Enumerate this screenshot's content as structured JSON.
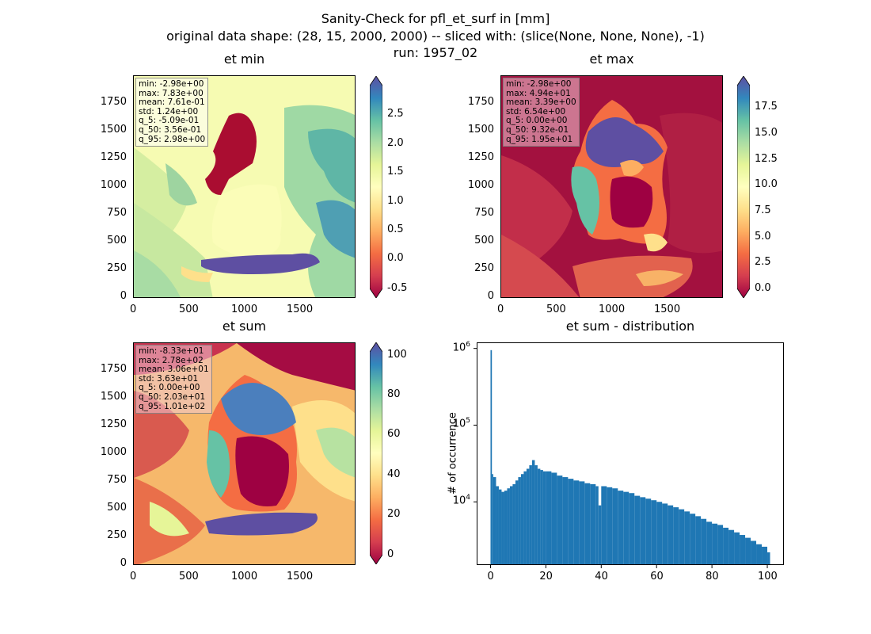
{
  "figure": {
    "title_line1": "Sanity-Check for pfl_et_surf in [mm]",
    "title_line2": "original data shape: (28, 15, 2000, 2000) -- sliced with: (slice(None, None, None), -1)",
    "title_line3": "run: 1957_02"
  },
  "panels": {
    "et_min": {
      "title": "et min",
      "stats": [
        "min: -2.98e+00",
        "max: 7.83e+00",
        "mean: 7.61e-01",
        "std: 1.24e+00",
        "q_5: -5.09e-01",
        "q_50: 3.56e-01",
        "q_95: 2.98e+00"
      ],
      "xticks": [
        "0",
        "500",
        "1000",
        "1500"
      ],
      "yticks": [
        "0",
        "250",
        "500",
        "750",
        "1000",
        "1250",
        "1500",
        "1750"
      ],
      "cbar_ticks": [
        "-0.5",
        "0.0",
        "0.5",
        "1.0",
        "1.5",
        "2.0",
        "2.5"
      ],
      "cbar_range": [
        -0.51,
        2.98
      ]
    },
    "et_max": {
      "title": "et max",
      "stats": [
        "min: -2.98e+00",
        "max: 4.94e+01",
        "mean: 3.39e+00",
        "std: 6.54e+00",
        "q_5: 0.00e+00",
        "q_50: 9.32e-01",
        "q_95: 1.95e+01"
      ],
      "xticks": [
        "0",
        "500",
        "1000",
        "1500"
      ],
      "yticks": [
        "0",
        "250",
        "500",
        "750",
        "1000",
        "1250",
        "1500",
        "1750"
      ],
      "cbar_ticks": [
        "0.0",
        "2.5",
        "5.0",
        "7.5",
        "10.0",
        "12.5",
        "15.0",
        "17.5"
      ],
      "cbar_range": [
        0,
        19.5
      ]
    },
    "et_sum": {
      "title": "et sum",
      "stats": [
        "min: -8.33e+01",
        "max: 2.78e+02",
        "mean: 3.06e+01",
        "std: 3.63e+01",
        "q_5: 0.00e+00",
        "q_50: 2.03e+01",
        "q_95: 1.01e+02"
      ],
      "xticks": [
        "0",
        "500",
        "1000",
        "1500"
      ],
      "yticks": [
        "0",
        "250",
        "500",
        "750",
        "1000",
        "1250",
        "1500",
        "1750"
      ],
      "cbar_ticks": [
        "0",
        "20",
        "40",
        "60",
        "80",
        "100"
      ],
      "cbar_range": [
        0,
        101
      ]
    },
    "et_dist": {
      "title": "et sum - distribution",
      "ylabel": "# of occurrence",
      "xticks": [
        "0",
        "20",
        "40",
        "60",
        "80",
        "100"
      ],
      "yticks": [
        "10^4",
        "10^5",
        "10^6"
      ]
    }
  },
  "chart_data": {
    "type": "bar",
    "title": "et sum - distribution",
    "xlabel": "",
    "ylabel": "# of occurrence",
    "yscale": "log",
    "xlim": [
      -5,
      106
    ],
    "ylim": [
      1500,
      1200000
    ],
    "color": "#1f77b4",
    "x": [
      0,
      0.5,
      1,
      2,
      3,
      4,
      5,
      6,
      7,
      8,
      9,
      10,
      11,
      12,
      13,
      14,
      15,
      16,
      17,
      18,
      19,
      20,
      22,
      24,
      26,
      28,
      30,
      32,
      34,
      36,
      38,
      39,
      40,
      42,
      44,
      46,
      48,
      50,
      52,
      54,
      56,
      58,
      60,
      62,
      64,
      66,
      68,
      70,
      72,
      74,
      76,
      78,
      80,
      82,
      84,
      86,
      88,
      90,
      92,
      94,
      96,
      98,
      100
    ],
    "values": [
      950000,
      23000,
      21000,
      16000,
      14500,
      13500,
      14000,
      15000,
      16000,
      17000,
      19000,
      21000,
      23000,
      25000,
      27000,
      30000,
      35000,
      30000,
      27000,
      26000,
      25000,
      25000,
      24000,
      22000,
      21000,
      20000,
      19000,
      18500,
      17500,
      17000,
      16000,
      9000,
      16000,
      15500,
      15000,
      14000,
      13500,
      13000,
      12000,
      11500,
      11000,
      10500,
      10000,
      9500,
      9000,
      8500,
      8000,
      7500,
      7000,
      6500,
      6000,
      5500,
      5200,
      5000,
      4600,
      4300,
      4000,
      3700,
      3400,
      3100,
      2800,
      2600,
      2200
    ]
  }
}
